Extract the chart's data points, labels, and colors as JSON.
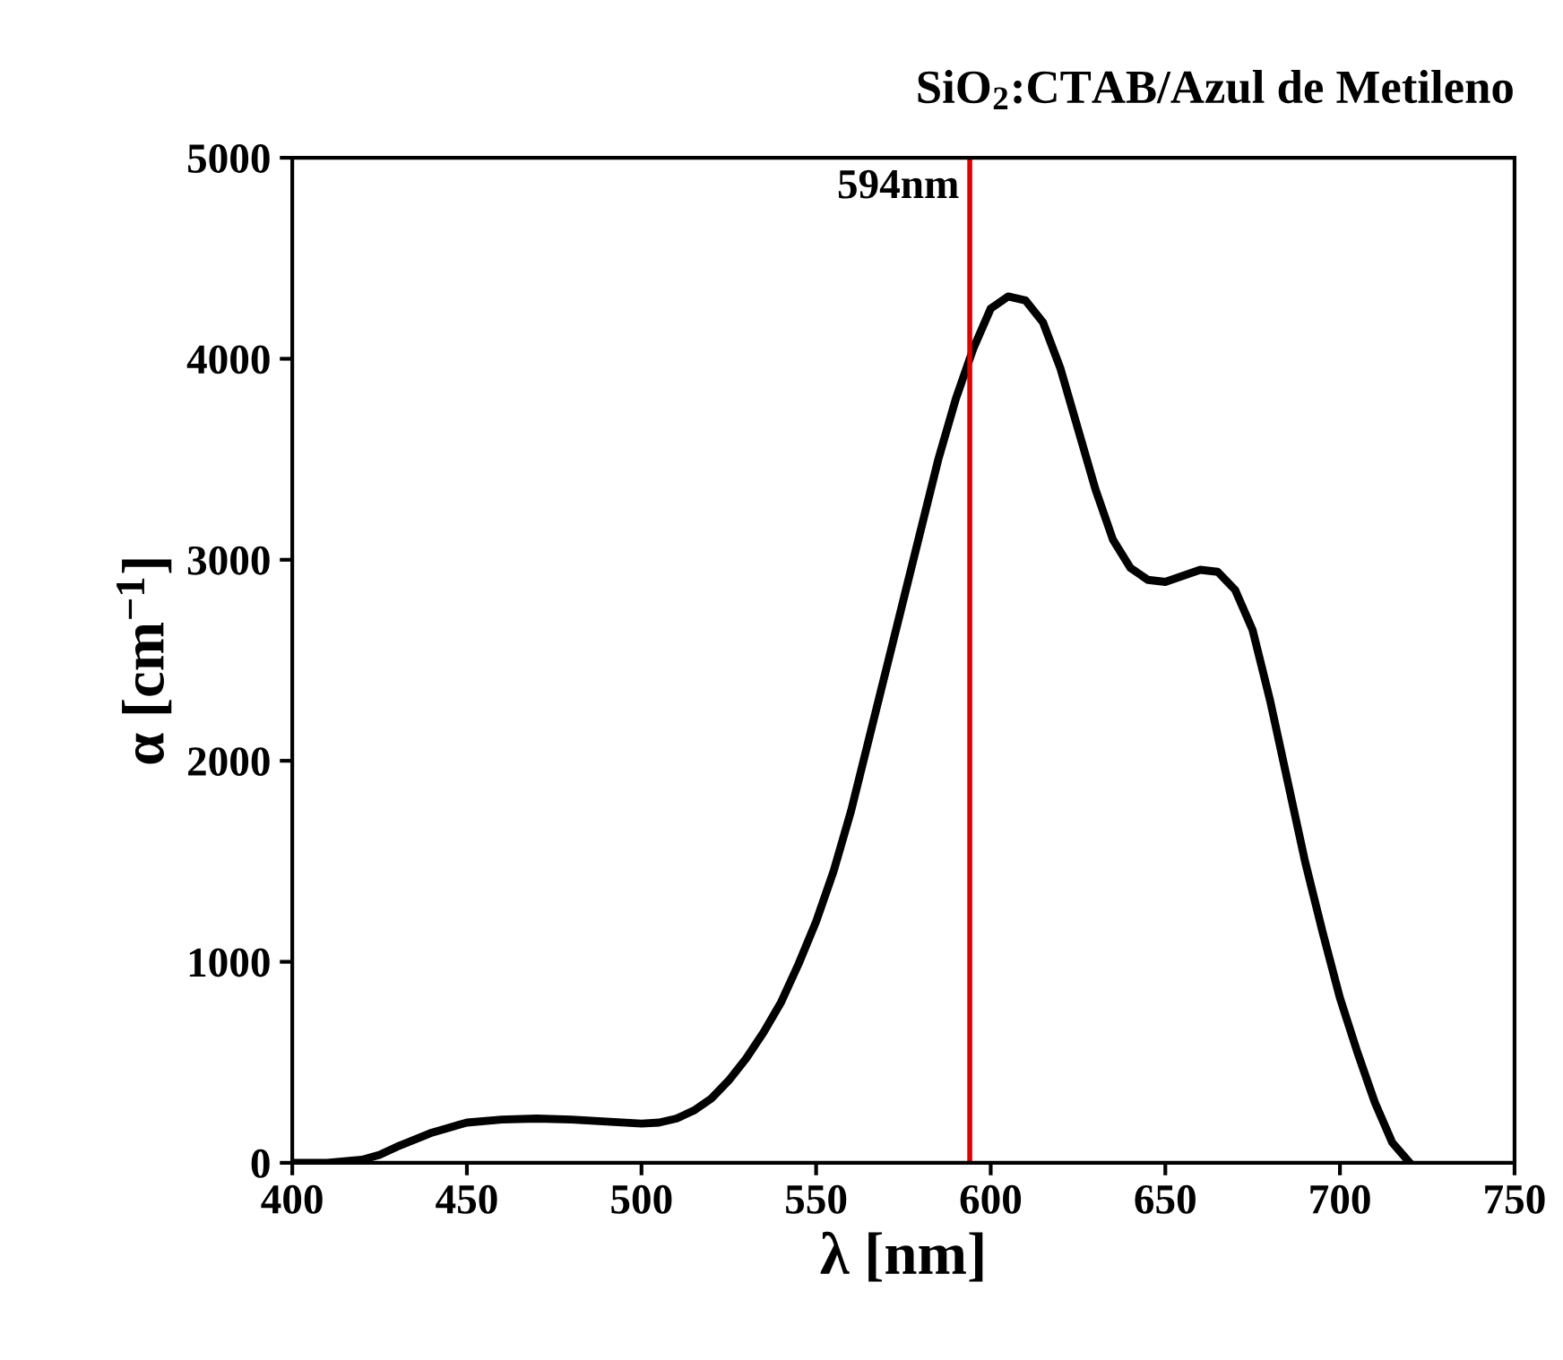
{
  "chart_data": {
    "type": "line",
    "title": "SiO$_{2}$:CTAB/Azul de Metileno",
    "xlabel": "λ [nm]",
    "ylabel": "α [cm$^{−1}$]",
    "x": [
      400,
      410,
      420,
      425,
      430,
      440,
      450,
      460,
      470,
      480,
      490,
      500,
      505,
      510,
      515,
      520,
      525,
      530,
      535,
      540,
      545,
      550,
      555,
      560,
      565,
      570,
      575,
      580,
      585,
      590,
      595,
      600,
      605,
      610,
      615,
      620,
      625,
      630,
      635,
      640,
      645,
      650,
      655,
      660,
      665,
      670,
      675,
      680,
      685,
      690,
      695,
      700,
      705,
      710,
      715,
      720
    ],
    "series": [
      {
        "color": "#000000",
        "values": [
          0,
          0,
          15,
          40,
          80,
          150,
          200,
          215,
          220,
          215,
          205,
          195,
          200,
          220,
          260,
          320,
          410,
          520,
          650,
          800,
          990,
          1200,
          1450,
          1750,
          2100,
          2450,
          2800,
          3150,
          3500,
          3800,
          4050,
          4250,
          4310,
          4290,
          4180,
          3950,
          3650,
          3350,
          3100,
          2960,
          2900,
          2890,
          2920,
          2950,
          2940,
          2850,
          2650,
          2300,
          1900,
          1500,
          1150,
          820,
          550,
          300,
          100,
          0
        ]
      }
    ],
    "xlim": [
      400,
      750
    ],
    "xticks": [
      400,
      450,
      500,
      550,
      600,
      650,
      700,
      750
    ],
    "ylim": [
      0,
      5000
    ],
    "yticks": [
      0,
      1000,
      2000,
      3000,
      4000,
      5000
    ],
    "ref_lines": [
      {
        "axis": "x",
        "value": 594,
        "label": "594nm",
        "color": "#e00000"
      }
    ],
    "grid": false,
    "legend": false,
    "line_style": "solid",
    "marker": "none"
  }
}
